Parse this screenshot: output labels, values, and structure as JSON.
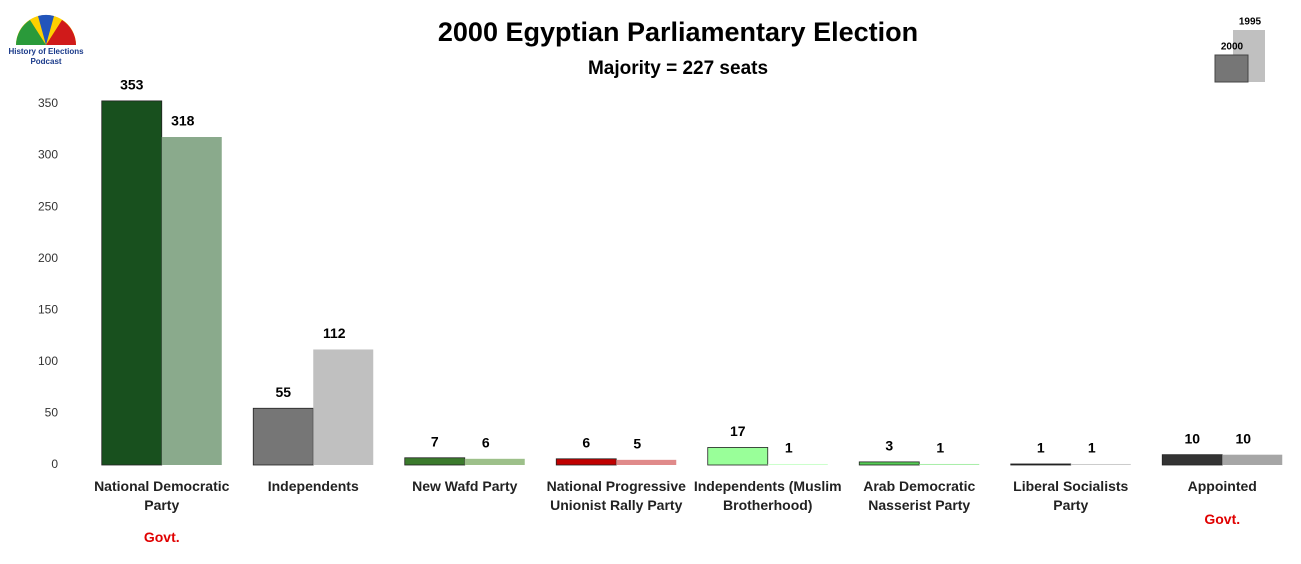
{
  "chart_data": {
    "type": "bar",
    "title": "2000 Egyptian Parliamentary Election",
    "subtitle": "Majority = 227 seats",
    "logo_text": [
      "History of Elections",
      "Podcast"
    ],
    "categories": [
      "National Democratic Party",
      "Independents",
      "New Wafd Party",
      "National Progressive Unionist Rally Party",
      "Independents (Muslim Brotherhood)",
      "Arab Democratic Nasserist Party",
      "Liberal Socialists Party",
      "Appointed"
    ],
    "series": [
      {
        "name": "2000",
        "values": [
          353,
          55,
          7,
          6,
          17,
          3,
          1,
          10
        ],
        "colors": [
          "#18501e",
          "#767676",
          "#3b7a2c",
          "#c00000",
          "#99ff99",
          "#55cc55",
          "#222222",
          "#333333"
        ]
      },
      {
        "name": "1995",
        "values": [
          318,
          112,
          6,
          5,
          1,
          1,
          1,
          10
        ],
        "colors": [
          "#8aaa8c",
          "#c0c0c0",
          "#9dc08a",
          "#e08a8a",
          "#ccffcc",
          "#aaeeaa",
          "#cccccc",
          "#a6a6a6"
        ]
      }
    ],
    "annotations": [
      {
        "text": "Govt.",
        "category": 0
      },
      {
        "text": "Govt.",
        "category": 7
      }
    ],
    "ylim": [
      0,
      350
    ],
    "yticks": [
      0,
      50,
      100,
      150,
      200,
      250,
      300,
      350
    ],
    "grid": false
  }
}
